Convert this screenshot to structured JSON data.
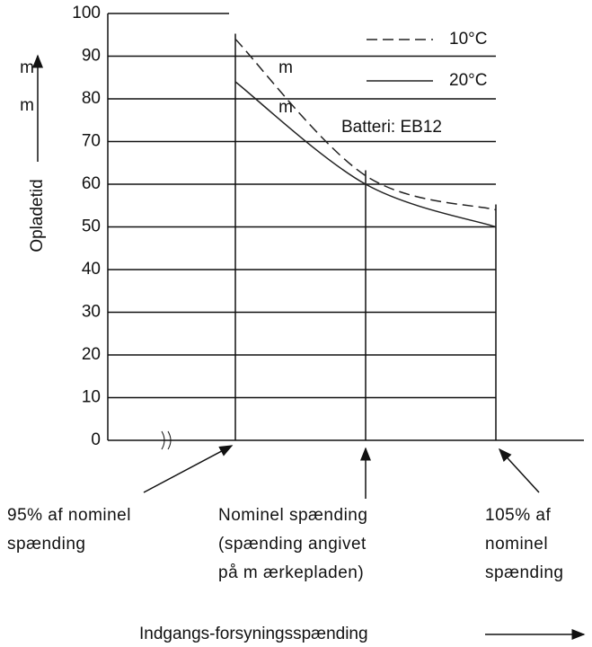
{
  "chart_data": {
    "type": "line",
    "y_label": "Opladetid",
    "x_label": "Indgangs-forsyningsspænding",
    "annotation": "Batteri: EB12",
    "stray_labels": [
      "m",
      "m",
      "m",
      "m"
    ],
    "categories": [
      "95% af nominel\nspænding",
      "Nominel spænding\n(spænding angivet\npå m ærkepladen)",
      "105% af\nnominel\nspænding"
    ],
    "series": [
      {
        "name": "10°C",
        "color": "#222222",
        "dash": true,
        "values": [
          94,
          62,
          54
        ]
      },
      {
        "name": "20°C",
        "color": "#222222",
        "dash": false,
        "values": [
          84,
          60,
          50
        ]
      }
    ],
    "ylim": [
      0,
      100
    ],
    "yticks": [
      0,
      10,
      20,
      30,
      40,
      50,
      60,
      70,
      80,
      90,
      100
    ],
    "grid": true
  }
}
